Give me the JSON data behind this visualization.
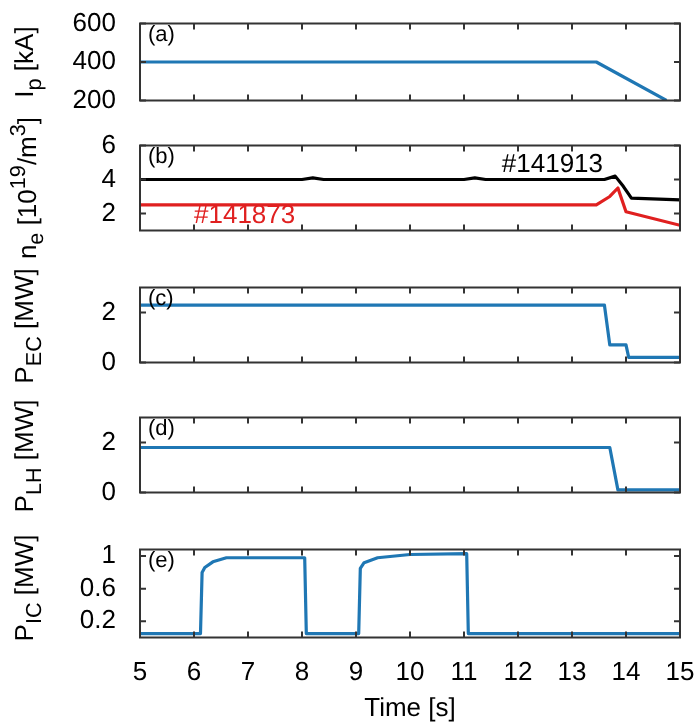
{
  "chart_data": [
    {
      "type": "line",
      "annotations": [
        "(a)"
      ],
      "ylabel": "I$_{p}$ [kA]",
      "x": [
        5,
        13.45,
        14.75
      ],
      "values": [
        400,
        400,
        200
      ],
      "color": "#1f77b4",
      "xlim": [
        5,
        15
      ],
      "ylim": [
        200,
        600
      ],
      "xticks": [
        5,
        6,
        7,
        8,
        9,
        10,
        11,
        12,
        13,
        14,
        15
      ],
      "yticks": [
        200,
        400,
        600
      ],
      "tick_labels": "y"
    },
    {
      "type": "line",
      "annotations": [
        "(b)"
      ],
      "ylabel": "n$_{e}$ [10$^{19}$/m$^{3}$]",
      "series": [
        {
          "name": "#141913",
          "color": "#000000",
          "x": [
            5,
            8.0,
            8.2,
            8.4,
            11.0,
            11.2,
            11.4,
            13.6,
            13.8,
            13.95,
            14.1,
            15
          ],
          "values": [
            4.0,
            4.0,
            4.1,
            4.0,
            4.0,
            4.1,
            4.0,
            4.0,
            4.2,
            3.6,
            2.9,
            2.8
          ]
        },
        {
          "name": "#141873",
          "color": "#e02020",
          "x": [
            5,
            13.45,
            13.7,
            13.85,
            14.0,
            15
          ],
          "values": [
            2.5,
            2.5,
            3.0,
            3.5,
            2.1,
            1.3
          ]
        }
      ],
      "xlim": [
        5,
        15
      ],
      "ylim": [
        1,
        6
      ],
      "xticks": [
        5,
        6,
        7,
        8,
        9,
        10,
        11,
        12,
        13,
        14,
        15
      ],
      "yticks": [
        2,
        4,
        6
      ],
      "tick_labels": "y"
    },
    {
      "type": "line",
      "annotations": [
        "(c)"
      ],
      "ylabel": "P$_{EC}$ [MW]",
      "x": [
        5,
        13.6,
        13.7,
        14.0,
        14.05,
        15
      ],
      "values": [
        2.3,
        2.3,
        0.7,
        0.7,
        0.2,
        0.2
      ],
      "color": "#1f77b4",
      "xlim": [
        5,
        15
      ],
      "ylim": [
        0,
        3
      ],
      "xticks": [
        5,
        6,
        7,
        8,
        9,
        10,
        11,
        12,
        13,
        14,
        15
      ],
      "yticks": [
        0,
        2
      ],
      "tick_labels": "y"
    },
    {
      "type": "line",
      "annotations": [
        "(d)"
      ],
      "ylabel": "P$_{LH}$ [MW]",
      "x": [
        5,
        13.7,
        13.85,
        15
      ],
      "values": [
        1.8,
        1.8,
        0.1,
        0.1
      ],
      "color": "#1f77b4",
      "xlim": [
        5,
        15
      ],
      "ylim": [
        0,
        3
      ],
      "xticks": [
        5,
        6,
        7,
        8,
        9,
        10,
        11,
        12,
        13,
        14,
        15
      ],
      "yticks": [
        0,
        2
      ],
      "tick_labels": "y"
    },
    {
      "type": "line",
      "annotations": [
        "(e)"
      ],
      "ylabel": "P$_{IC}$ [MW]",
      "xlabel": "Time [s]",
      "x": [
        5,
        6.12,
        6.15,
        6.2,
        6.35,
        6.6,
        8.05,
        8.08,
        9.05,
        9.08,
        9.15,
        9.4,
        10,
        11.05,
        11.08,
        15
      ],
      "values": [
        0.05,
        0.05,
        0.8,
        0.86,
        0.93,
        0.98,
        0.98,
        0.05,
        0.05,
        0.85,
        0.92,
        0.98,
        1.02,
        1.03,
        0.05,
        0.05
      ],
      "color": "#1f77b4",
      "xlim": [
        5,
        15
      ],
      "ylim": [
        0,
        1.08
      ],
      "xticks": [
        5,
        6,
        7,
        8,
        9,
        10,
        11,
        12,
        13,
        14,
        15
      ],
      "yticks": [
        0.2,
        0.6,
        1
      ]
    }
  ]
}
